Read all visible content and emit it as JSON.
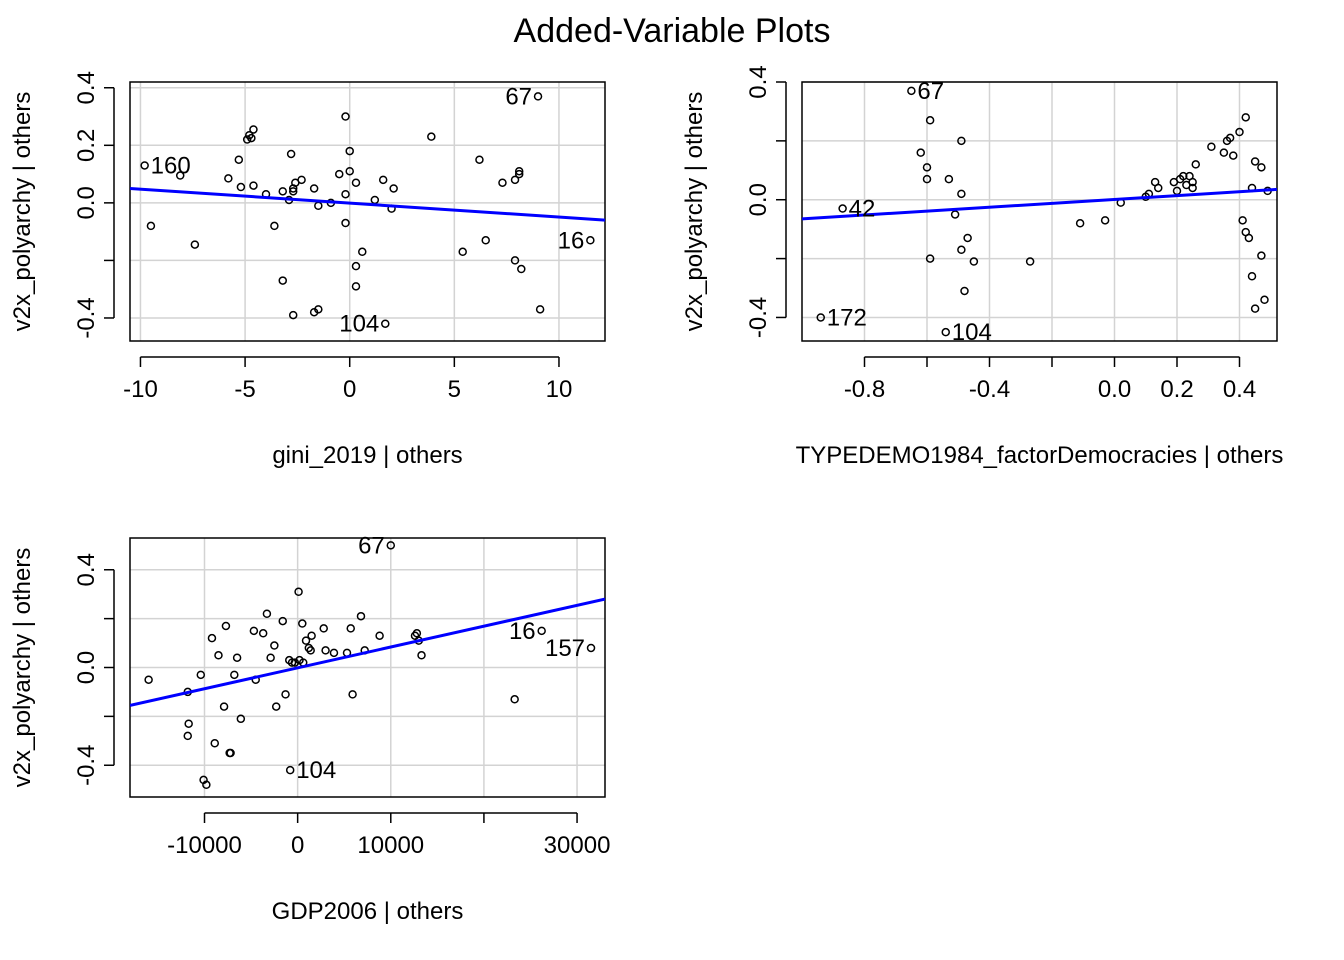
{
  "title": "Added-Variable Plots",
  "chart_data": [
    {
      "type": "scatter",
      "xlabel": "gini_2019 | others",
      "ylabel": "v2x_polyarchy  | others",
      "xlim": [
        -10.5,
        12.2
      ],
      "ylim": [
        -0.48,
        0.42
      ],
      "xticks": [
        -10,
        -5,
        0,
        5,
        10
      ],
      "xtick_labels": [
        "-10",
        "-5",
        "0",
        "5",
        "10"
      ],
      "yticks": [
        -0.4,
        -0.2,
        0.0,
        0.2,
        0.4
      ],
      "ytick_labels": [
        "-0.4",
        "",
        "0.0",
        "0.2",
        "0.4"
      ],
      "grid": true,
      "fit_line": {
        "x": [
          -10.5,
          12.2
        ],
        "y": [
          0.05,
          -0.06
        ]
      },
      "points": [
        [
          -9.8,
          0.13
        ],
        [
          -8.1,
          0.095
        ],
        [
          -9.5,
          -0.08
        ],
        [
          -7.4,
          -0.145
        ],
        [
          -5.8,
          0.085
        ],
        [
          -5.3,
          0.15
        ],
        [
          -5.2,
          0.055
        ],
        [
          -4.9,
          0.22
        ],
        [
          -4.8,
          0.235
        ],
        [
          -4.7,
          0.225
        ],
        [
          -4.6,
          0.255
        ],
        [
          -4.6,
          0.06
        ],
        [
          -4.0,
          0.03
        ],
        [
          -3.6,
          -0.08
        ],
        [
          -3.2,
          0.04
        ],
        [
          -3.2,
          -0.27
        ],
        [
          -2.9,
          0.01
        ],
        [
          -2.7,
          0.04
        ],
        [
          -2.7,
          -0.39
        ],
        [
          -2.8,
          0.17
        ],
        [
          -2.7,
          0.05
        ],
        [
          -2.6,
          0.07
        ],
        [
          -2.3,
          0.08
        ],
        [
          -1.7,
          0.05
        ],
        [
          -1.5,
          -0.01
        ],
        [
          -1.5,
          -0.37
        ],
        [
          -1.7,
          -0.38
        ],
        [
          -0.9,
          0.0
        ],
        [
          -0.5,
          0.1
        ],
        [
          -0.2,
          0.3
        ],
        [
          -0.2,
          0.03
        ],
        [
          0.0,
          0.18
        ],
        [
          0.0,
          0.11
        ],
        [
          -0.2,
          -0.07
        ],
        [
          0.3,
          0.07
        ],
        [
          0.6,
          -0.17
        ],
        [
          0.3,
          -0.22
        ],
        [
          0.3,
          -0.29
        ],
        [
          1.2,
          0.01
        ],
        [
          1.6,
          0.08
        ],
        [
          1.7,
          -0.42
        ],
        [
          2.0,
          -0.02
        ],
        [
          2.1,
          0.05
        ],
        [
          3.9,
          0.23
        ],
        [
          5.4,
          -0.17
        ],
        [
          6.2,
          0.15
        ],
        [
          6.5,
          -0.13
        ],
        [
          7.3,
          0.07
        ],
        [
          7.9,
          0.08
        ],
        [
          7.9,
          -0.2
        ],
        [
          8.1,
          0.1
        ],
        [
          8.1,
          0.11
        ],
        [
          8.2,
          -0.23
        ],
        [
          9.0,
          0.37
        ],
        [
          9.1,
          -0.37
        ],
        [
          11.5,
          -0.13
        ]
      ],
      "labels": [
        {
          "text": "160",
          "x": -9.8,
          "y": 0.13,
          "side": "right"
        },
        {
          "text": "67",
          "x": 9.0,
          "y": 0.37,
          "side": "left"
        },
        {
          "text": "16",
          "x": 11.5,
          "y": -0.13,
          "side": "left"
        },
        {
          "text": "104",
          "x": 1.7,
          "y": -0.42,
          "side": "left"
        }
      ]
    },
    {
      "type": "scatter",
      "xlabel": "TYPEDEMO1984_factorDemocracies | others",
      "ylabel": "v2x_polyarchy  | others",
      "xlim": [
        -1.0,
        0.52
      ],
      "ylim": [
        -0.48,
        0.4
      ],
      "xticks": [
        -0.8,
        -0.6,
        -0.4,
        -0.2,
        0.0,
        0.2,
        0.4
      ],
      "xtick_labels": [
        "-0.8",
        "",
        "-0.4",
        "",
        "0.0",
        "0.2",
        "0.4"
      ],
      "yticks": [
        -0.4,
        -0.2,
        0.0,
        0.2,
        0.4
      ],
      "ytick_labels": [
        "-0.4",
        "",
        "0.0",
        "",
        "0.4"
      ],
      "grid": true,
      "fit_line": {
        "x": [
          -1.0,
          0.52
        ],
        "y": [
          -0.065,
          0.035
        ]
      },
      "points": [
        [
          -0.94,
          -0.4
        ],
        [
          -0.87,
          -0.03
        ],
        [
          -0.65,
          0.37
        ],
        [
          -0.62,
          0.16
        ],
        [
          -0.6,
          0.11
        ],
        [
          -0.59,
          0.27
        ],
        [
          -0.6,
          0.07
        ],
        [
          -0.59,
          -0.2
        ],
        [
          -0.54,
          -0.45
        ],
        [
          -0.53,
          0.07
        ],
        [
          -0.51,
          -0.05
        ],
        [
          -0.49,
          0.02
        ],
        [
          -0.49,
          0.2
        ],
        [
          -0.49,
          -0.17
        ],
        [
          -0.48,
          -0.31
        ],
        [
          -0.47,
          -0.13
        ],
        [
          -0.45,
          -0.21
        ],
        [
          -0.27,
          -0.21
        ],
        [
          -0.11,
          -0.08
        ],
        [
          -0.03,
          -0.07
        ],
        [
          0.02,
          -0.01
        ],
        [
          0.1,
          0.01
        ],
        [
          0.11,
          0.02
        ],
        [
          0.13,
          0.06
        ],
        [
          0.14,
          0.04
        ],
        [
          0.19,
          0.06
        ],
        [
          0.2,
          0.03
        ],
        [
          0.21,
          0.07
        ],
        [
          0.22,
          0.08
        ],
        [
          0.23,
          0.05
        ],
        [
          0.24,
          0.08
        ],
        [
          0.25,
          0.04
        ],
        [
          0.25,
          0.06
        ],
        [
          0.26,
          0.12
        ],
        [
          0.31,
          0.18
        ],
        [
          0.35,
          0.16
        ],
        [
          0.36,
          0.2
        ],
        [
          0.37,
          0.21
        ],
        [
          0.38,
          0.15
        ],
        [
          0.4,
          0.23
        ],
        [
          0.41,
          -0.07
        ],
        [
          0.42,
          -0.11
        ],
        [
          0.42,
          0.28
        ],
        [
          0.43,
          -0.13
        ],
        [
          0.44,
          -0.26
        ],
        [
          0.44,
          0.04
        ],
        [
          0.45,
          -0.37
        ],
        [
          0.45,
          0.13
        ],
        [
          0.47,
          0.11
        ],
        [
          0.47,
          -0.19
        ],
        [
          0.48,
          -0.34
        ],
        [
          0.49,
          0.03
        ]
      ],
      "labels": [
        {
          "text": "67",
          "x": -0.65,
          "y": 0.37,
          "side": "right"
        },
        {
          "text": "42",
          "x": -0.87,
          "y": -0.03,
          "side": "right"
        },
        {
          "text": "172",
          "x": -0.94,
          "y": -0.4,
          "side": "right"
        },
        {
          "text": "104",
          "x": -0.54,
          "y": -0.45,
          "side": "right"
        }
      ]
    },
    {
      "type": "scatter",
      "xlabel": "GDP2006 | others",
      "ylabel": "v2x_polyarchy  | others",
      "xlim": [
        -18000,
        33000
      ],
      "ylim": [
        -0.53,
        0.53
      ],
      "xticks": [
        -10000,
        0,
        10000,
        20000,
        30000
      ],
      "xtick_labels": [
        "-10000",
        "0",
        "10000",
        "",
        "30000"
      ],
      "yticks": [
        -0.4,
        -0.2,
        0.0,
        0.2,
        0.4
      ],
      "ytick_labels": [
        "-0.4",
        "",
        "0.0",
        "",
        "0.4"
      ],
      "grid": true,
      "fit_line": {
        "x": [
          -18000,
          33000
        ],
        "y": [
          -0.155,
          0.28
        ]
      },
      "points": [
        [
          -16000,
          -0.05
        ],
        [
          -11800,
          -0.1
        ],
        [
          -11700,
          -0.23
        ],
        [
          -11800,
          -0.28
        ],
        [
          -10400,
          -0.03
        ],
        [
          -10100,
          -0.46
        ],
        [
          -9800,
          -0.48
        ],
        [
          -9200,
          0.12
        ],
        [
          -8900,
          -0.31
        ],
        [
          -8500,
          0.05
        ],
        [
          -7900,
          -0.16
        ],
        [
          -7700,
          0.17
        ],
        [
          -7300,
          -0.35
        ],
        [
          -7200,
          -0.35
        ],
        [
          -6800,
          -0.03
        ],
        [
          -6500,
          0.04
        ],
        [
          -6100,
          -0.21
        ],
        [
          -4700,
          0.15
        ],
        [
          -4500,
          -0.05
        ],
        [
          -3700,
          0.14
        ],
        [
          -3300,
          0.22
        ],
        [
          -2900,
          0.04
        ],
        [
          -2500,
          0.09
        ],
        [
          -2300,
          -0.16
        ],
        [
          -1600,
          0.19
        ],
        [
          -1300,
          -0.11
        ],
        [
          -900,
          0.03
        ],
        [
          -800,
          -0.42
        ],
        [
          -600,
          0.02
        ],
        [
          -300,
          0.02
        ],
        [
          100,
          0.31
        ],
        [
          200,
          0.03
        ],
        [
          500,
          0.18
        ],
        [
          600,
          0.02
        ],
        [
          900,
          0.11
        ],
        [
          1200,
          0.08
        ],
        [
          1400,
          0.07
        ],
        [
          1500,
          0.13
        ],
        [
          2800,
          0.16
        ],
        [
          3000,
          0.07
        ],
        [
          3900,
          0.06
        ],
        [
          5300,
          0.06
        ],
        [
          5700,
          0.16
        ],
        [
          5900,
          -0.11
        ],
        [
          6800,
          0.21
        ],
        [
          7200,
          0.07
        ],
        [
          8800,
          0.13
        ],
        [
          10000,
          0.5
        ],
        [
          12600,
          0.13
        ],
        [
          12800,
          0.14
        ],
        [
          13000,
          0.11
        ],
        [
          13300,
          0.05
        ],
        [
          23300,
          -0.13
        ],
        [
          26200,
          0.15
        ],
        [
          31500,
          0.08
        ]
      ],
      "labels": [
        {
          "text": "67",
          "x": 10000,
          "y": 0.5,
          "side": "left"
        },
        {
          "text": "16",
          "x": 26200,
          "y": 0.15,
          "side": "left"
        },
        {
          "text": "157",
          "x": 31500,
          "y": 0.08,
          "side": "left"
        },
        {
          "text": "104",
          "x": -800,
          "y": -0.42,
          "side": "right"
        }
      ]
    }
  ]
}
